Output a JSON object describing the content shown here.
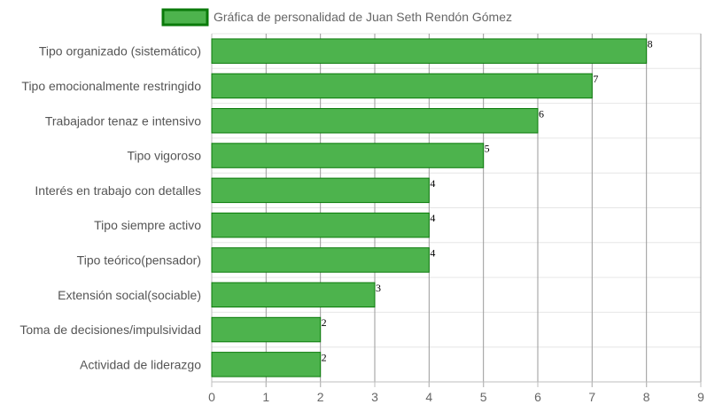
{
  "chart_data": {
    "type": "bar",
    "orientation": "horizontal",
    "categories": [
      "Tipo organizado (sistemático)",
      "Tipo emocionalmente restringido",
      "Trabajador tenaz e intensivo",
      "Tipo vigoroso",
      "Interés en trabajo con detalles",
      "Tipo siempre activo",
      "Tipo teórico(pensador)",
      "Extensión social(sociable)",
      "Toma de decisiones/impulsividad",
      "Actividad de liderazgo"
    ],
    "series": [
      {
        "name": "Gráfica de personalidad de Juan Seth Rendón Gómez",
        "values": [
          8,
          7,
          6,
          5,
          4,
          4,
          4,
          3,
          2,
          2
        ],
        "color": "#4db34d",
        "border_color": "#0a7a0a"
      }
    ],
    "xlim": [
      0,
      9
    ],
    "xticks": [
      "0",
      "1",
      "2",
      "3",
      "4",
      "5",
      "6",
      "7",
      "8",
      "9"
    ],
    "grid": true,
    "legend_position": "top",
    "data_labels": true
  }
}
